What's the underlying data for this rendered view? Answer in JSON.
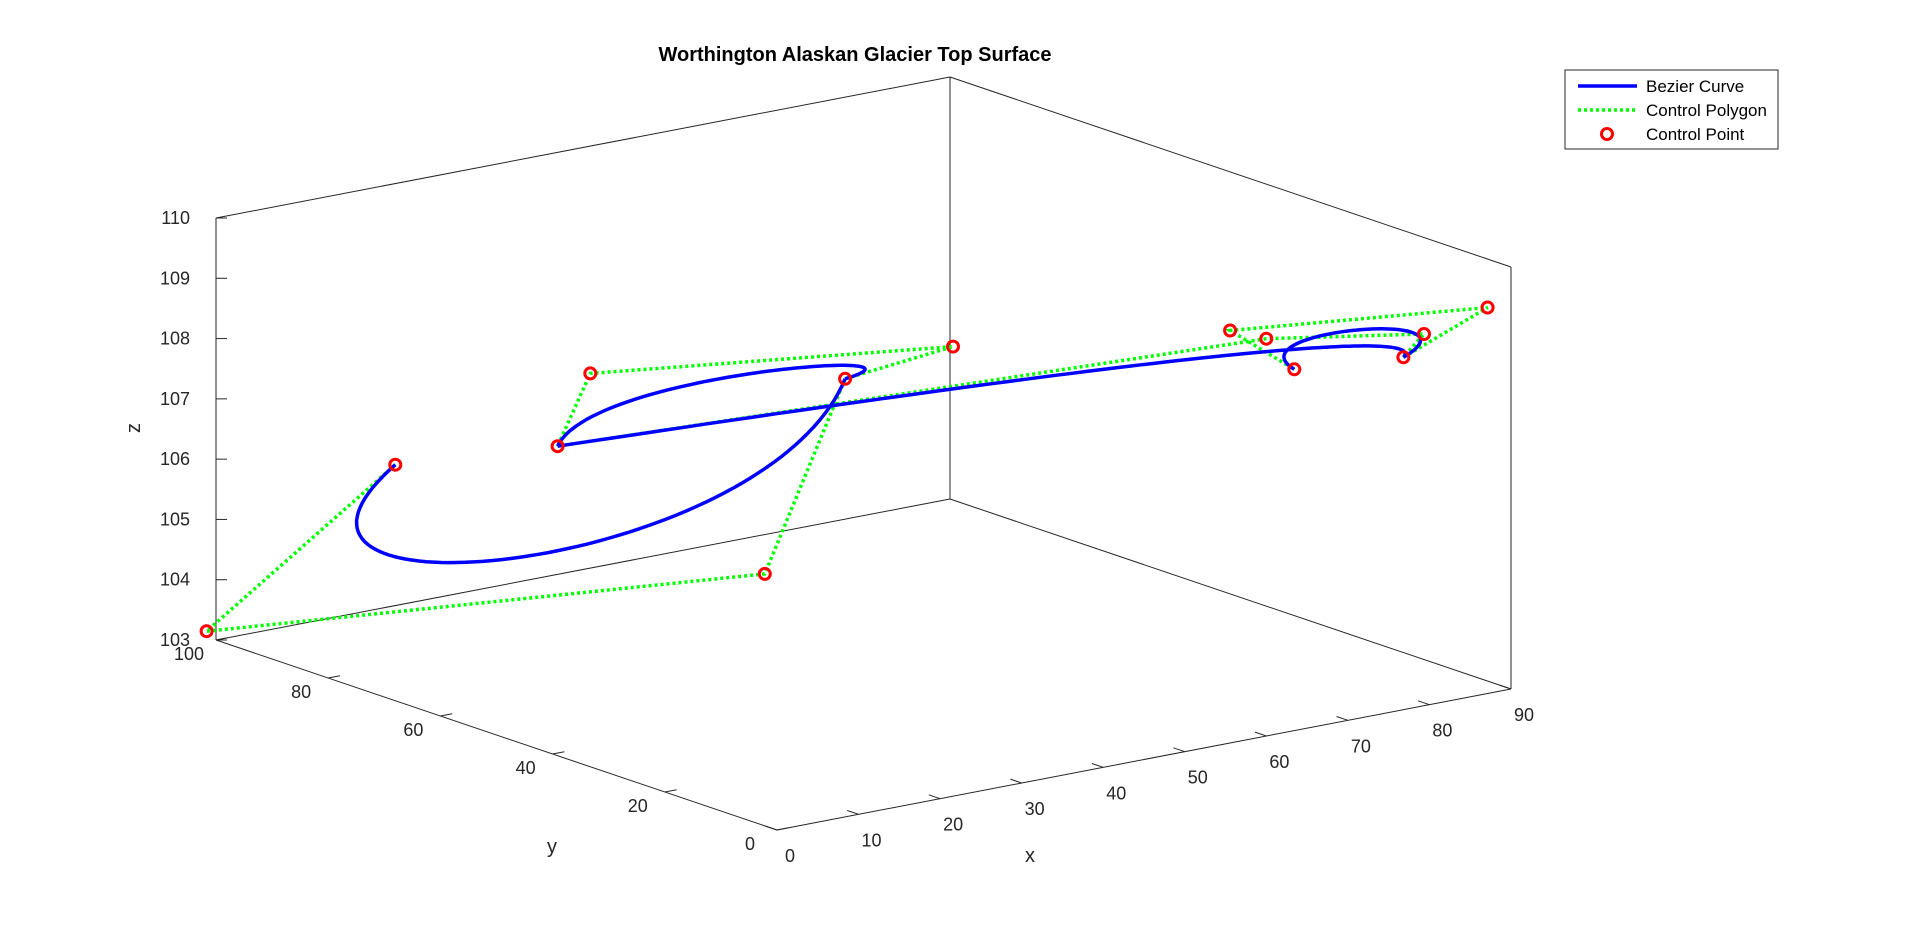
{
  "chart_data": {
    "type": "line3d",
    "title": "Worthington Alaskan Glacier Top Surface",
    "xlabel": "x",
    "ylabel": "y",
    "zlabel": "z",
    "xlim": [
      0,
      90
    ],
    "ylim": [
      0,
      100
    ],
    "zlim": [
      103,
      110
    ],
    "xticks": [
      "0",
      "10",
      "20",
      "30",
      "40",
      "50",
      "60",
      "70",
      "80",
      "90"
    ],
    "yticks": [
      "0",
      "20",
      "40",
      "60",
      "80",
      "100"
    ],
    "zticks": [
      "103",
      "104",
      "105",
      "106",
      "107",
      "108",
      "109",
      "110"
    ],
    "grid": false,
    "legend_position": "top-right",
    "colors": {
      "curve": "#0000ff",
      "polygon": "#00ff00",
      "point": "#ff0000",
      "axes": "#262626"
    },
    "segments": [
      {
        "control_points": [
          {
            "x": 3.0,
            "y": 72.4,
            "z": 106.7
          },
          {
            "x": -1.5,
            "y": 99.5,
            "z": 103.2
          },
          {
            "x": 41.5,
            "y": 62.5,
            "z": 104.2
          },
          {
            "x": 45.5,
            "y": 54.0,
            "z": 107.6
          }
        ]
      },
      {
        "control_points": [
          {
            "x": 45.5,
            "y": 54.0,
            "z": 107.6
          },
          {
            "x": 40.5,
            "y": 27.5,
            "z": 109.1
          },
          {
            "x": 11.5,
            "y": 50.0,
            "z": 108.7
          },
          {
            "x": 13.0,
            "y": 58.0,
            "z": 107.2
          }
        ]
      },
      {
        "control_points": [
          {
            "x": 13.0,
            "y": 58.0,
            "z": 107.2
          },
          {
            "x": 71.0,
            "y": 16.0,
            "z": 108.8
          },
          {
            "x": 90.0,
            "y": 15.5,
            "z": 108.4
          },
          {
            "x": 83.0,
            "y": 9.0,
            "z": 108.4
          }
        ]
      },
      {
        "control_points": [
          {
            "x": 83.0,
            "y": 9.0,
            "z": 108.4
          },
          {
            "x": 83.0,
            "y": -6.0,
            "z": 109.7
          },
          {
            "x": 64.5,
            "y": 13.0,
            "z": 109.2
          },
          {
            "x": 71.0,
            "y": 11.0,
            "z": 108.45
          }
        ]
      }
    ],
    "legend": [
      {
        "label": "Bezier Curve",
        "style": "solid",
        "color": "#0000ff"
      },
      {
        "label": "Control Polygon",
        "style": "dotted",
        "color": "#00ff00"
      },
      {
        "label": "Control Point",
        "style": "marker",
        "color": "#ff0000"
      }
    ]
  }
}
